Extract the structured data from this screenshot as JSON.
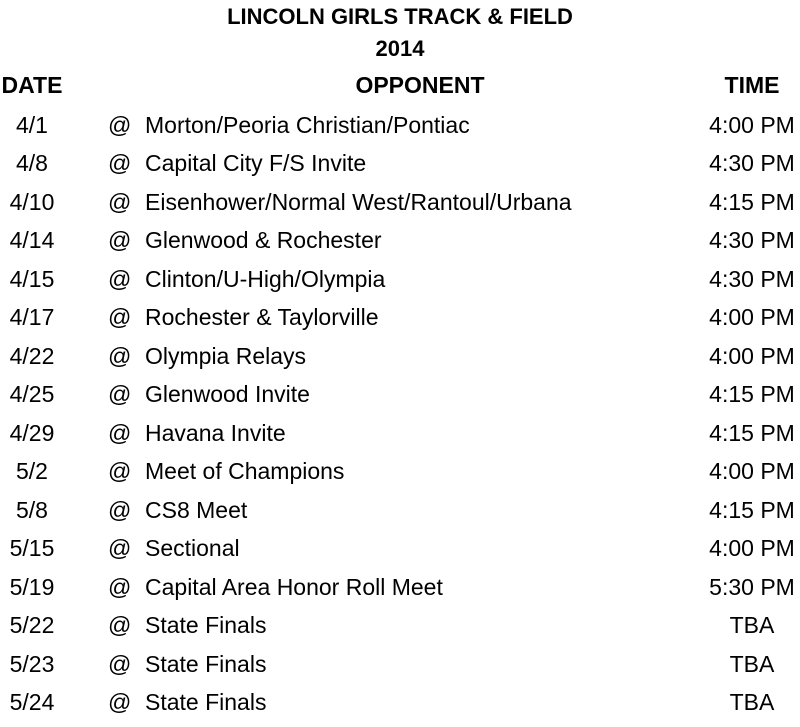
{
  "title": "LINCOLN GIRLS TRACK & FIELD",
  "year": "2014",
  "headers": {
    "date": "DATE",
    "opponent": "OPPONENT",
    "time": "TIME"
  },
  "rows": [
    {
      "date": "4/1",
      "at": "@",
      "opponent": "Morton/Peoria Christian/Pontiac",
      "time": "4:00 PM"
    },
    {
      "date": "4/8",
      "at": "@",
      "opponent": "Capital City F/S Invite",
      "time": "4:30 PM"
    },
    {
      "date": "4/10",
      "at": "@",
      "opponent": "Eisenhower/Normal West/Rantoul/Urbana",
      "time": "4:15 PM"
    },
    {
      "date": "4/14",
      "at": "@",
      "opponent": "Glenwood & Rochester",
      "time": "4:30 PM"
    },
    {
      "date": "4/15",
      "at": "@",
      "opponent": "Clinton/U-High/Olympia",
      "time": "4:30 PM"
    },
    {
      "date": "4/17",
      "at": "@",
      "opponent": "Rochester & Taylorville",
      "time": "4:00 PM"
    },
    {
      "date": "4/22",
      "at": "@",
      "opponent": "Olympia Relays",
      "time": "4:00 PM"
    },
    {
      "date": "4/25",
      "at": "@",
      "opponent": "Glenwood Invite",
      "time": "4:15 PM"
    },
    {
      "date": "4/29",
      "at": "@",
      "opponent": "Havana Invite",
      "time": "4:15 PM"
    },
    {
      "date": "5/2",
      "at": "@",
      "opponent": "Meet of Champions",
      "time": "4:00 PM"
    },
    {
      "date": "5/8",
      "at": "@",
      "opponent": "CS8 Meet",
      "time": "4:15 PM"
    },
    {
      "date": "5/15",
      "at": "@",
      "opponent": "Sectional",
      "time": "4:00 PM"
    },
    {
      "date": "5/19",
      "at": "@",
      "opponent": "Capital Area Honor Roll Meet",
      "time": "5:30 PM"
    },
    {
      "date": "5/22",
      "at": "@",
      "opponent": "State Finals",
      "time": "TBA"
    },
    {
      "date": "5/23",
      "at": "@",
      "opponent": "State Finals",
      "time": "TBA"
    },
    {
      "date": "5/24",
      "at": "@",
      "opponent": "State Finals",
      "time": "TBA"
    }
  ]
}
